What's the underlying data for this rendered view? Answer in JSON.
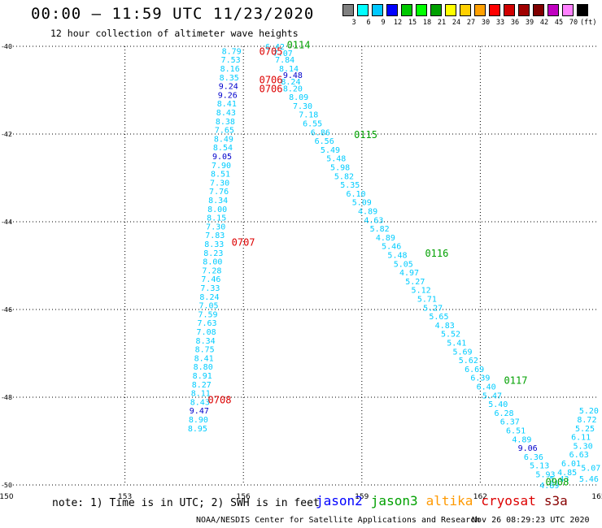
{
  "title": "00:00 – 11:59 UTC 11/23/2020",
  "subtitle": "12 hour collection of altimeter wave heights",
  "colorbar": {
    "colors": [
      "#808080",
      "#00ffff",
      "#00c8ff",
      "#0000ff",
      "#00c800",
      "#00ff00",
      "#00a000",
      "#ffff00",
      "#ffd000",
      "#ffa000",
      "#ff0000",
      "#d00000",
      "#a00000",
      "#800000",
      "#c000c0",
      "#ff80ff",
      "#000000"
    ],
    "ticks": [
      "3",
      "6",
      "9",
      "12",
      "15",
      "18",
      "21",
      "24",
      "27",
      "30",
      "33",
      "36",
      "39",
      "42",
      "45",
      "70",
      "(ft)"
    ]
  },
  "note": "note: 1) Time is in UTC; 2) SWH is in feet",
  "legend": [
    {
      "label": "jason2",
      "color": "#0000ff"
    },
    {
      "label": "jason3",
      "color": "#00a000"
    },
    {
      "label": "altika",
      "color": "#ff9900"
    },
    {
      "label": "cryosat",
      "color": "#dd0000"
    },
    {
      "label": "s3a",
      "color": "#880000"
    }
  ],
  "credit": "NOAA/NESDIS Center for Satellite Applications and Research",
  "timestamp": "Nov 26 08:29:23 UTC 2020",
  "chart_data": {
    "type": "scatter",
    "xlim": [
      150,
      165
    ],
    "ylim": [
      -50,
      -40
    ],
    "x_ticks": [
      "150",
      "153",
      "156",
      "159",
      "162",
      "165"
    ],
    "y_ticks": [
      "-40",
      "-42",
      "-44",
      "-46",
      "-48",
      "-50"
    ],
    "grid": true,
    "units": "ft",
    "time_labels": [
      {
        "text": "0705",
        "x": 156.4,
        "y": -40.1,
        "color": "#dd0000"
      },
      {
        "text": "0706",
        "x": 156.4,
        "y": -40.75,
        "color": "#dd0000"
      },
      {
        "text": "0706",
        "x": 156.4,
        "y": -40.95,
        "color": "#dd0000"
      },
      {
        "text": "0707",
        "x": 155.7,
        "y": -44.45,
        "color": "#dd0000"
      },
      {
        "text": "0708",
        "x": 155.1,
        "y": -48.05,
        "color": "#dd0000"
      },
      {
        "text": "0114",
        "x": 157.1,
        "y": -39.95,
        "color": "#00a000"
      },
      {
        "text": "0115",
        "x": 158.8,
        "y": -42.0,
        "color": "#00a000"
      },
      {
        "text": "0116",
        "x": 160.6,
        "y": -44.7,
        "color": "#00a000"
      },
      {
        "text": "0117",
        "x": 162.6,
        "y": -47.6,
        "color": "#00a000"
      },
      {
        "text": "0908",
        "x": 163.65,
        "y": -49.92,
        "color": "#00a000"
      }
    ],
    "series": [
      {
        "name": "cryosat",
        "color": "#00ccff",
        "points": [
          {
            "x": 155.7,
            "y": -40.1,
            "v": "8.79"
          },
          {
            "x": 155.68,
            "y": -40.3,
            "v": "7.53"
          },
          {
            "x": 155.66,
            "y": -40.5,
            "v": "8.16"
          },
          {
            "x": 155.64,
            "y": -40.7,
            "v": "8.35"
          },
          {
            "x": 155.62,
            "y": -40.9,
            "v": "9.24",
            "c": "#0000cc"
          },
          {
            "x": 155.6,
            "y": -41.1,
            "v": "9.26",
            "c": "#0000cc"
          },
          {
            "x": 155.58,
            "y": -41.3,
            "v": "8.41"
          },
          {
            "x": 155.56,
            "y": -41.5,
            "v": "8.43"
          },
          {
            "x": 155.54,
            "y": -41.7,
            "v": "8.38"
          },
          {
            "x": 155.52,
            "y": -41.9,
            "v": "7.65"
          },
          {
            "x": 155.5,
            "y": -42.1,
            "v": "8.49"
          },
          {
            "x": 155.48,
            "y": -42.3,
            "v": "8.54"
          },
          {
            "x": 155.46,
            "y": -42.5,
            "v": "9.05",
            "c": "#0000cc"
          },
          {
            "x": 155.44,
            "y": -42.7,
            "v": "7.90"
          },
          {
            "x": 155.42,
            "y": -42.9,
            "v": "8.51"
          },
          {
            "x": 155.4,
            "y": -43.1,
            "v": "7.30"
          },
          {
            "x": 155.38,
            "y": -43.3,
            "v": "7.76"
          },
          {
            "x": 155.36,
            "y": -43.5,
            "v": "8.34"
          },
          {
            "x": 155.34,
            "y": -43.7,
            "v": "8.00"
          },
          {
            "x": 155.32,
            "y": -43.9,
            "v": "8.15"
          },
          {
            "x": 155.3,
            "y": -44.1,
            "v": "7.30"
          },
          {
            "x": 155.28,
            "y": -44.3,
            "v": "7.83"
          },
          {
            "x": 155.26,
            "y": -44.5,
            "v": "8.33"
          },
          {
            "x": 155.24,
            "y": -44.7,
            "v": "8.23"
          },
          {
            "x": 155.22,
            "y": -44.9,
            "v": "8.00"
          },
          {
            "x": 155.2,
            "y": -45.1,
            "v": "7.28"
          },
          {
            "x": 155.18,
            "y": -45.3,
            "v": "7.46"
          },
          {
            "x": 155.16,
            "y": -45.5,
            "v": "7.33"
          },
          {
            "x": 155.14,
            "y": -45.7,
            "v": "8.24"
          },
          {
            "x": 155.12,
            "y": -45.9,
            "v": "7.05"
          },
          {
            "x": 155.1,
            "y": -46.1,
            "v": "7.59"
          },
          {
            "x": 155.08,
            "y": -46.3,
            "v": "7.63"
          },
          {
            "x": 155.06,
            "y": -46.5,
            "v": "7.08"
          },
          {
            "x": 155.04,
            "y": -46.7,
            "v": "8.34"
          },
          {
            "x": 155.02,
            "y": -46.9,
            "v": "8.75"
          },
          {
            "x": 155.0,
            "y": -47.1,
            "v": "8.41"
          },
          {
            "x": 154.98,
            "y": -47.3,
            "v": "8.80"
          },
          {
            "x": 154.96,
            "y": -47.5,
            "v": "8.91"
          },
          {
            "x": 154.94,
            "y": -47.7,
            "v": "8.27"
          },
          {
            "x": 154.92,
            "y": -47.9,
            "v": "8.11"
          },
          {
            "x": 154.9,
            "y": -48.1,
            "v": "8.43"
          },
          {
            "x": 154.88,
            "y": -48.3,
            "v": "9.47",
            "c": "#0000cc"
          },
          {
            "x": 154.86,
            "y": -48.5,
            "v": "8.90"
          },
          {
            "x": 154.84,
            "y": -48.7,
            "v": "8.95"
          }
        ]
      },
      {
        "name": "jason3",
        "color": "#00ccff",
        "points": [
          {
            "x": 156.8,
            "y": -40.0,
            "v": "6.42"
          },
          {
            "x": 157.0,
            "y": -40.15,
            "v": "7.07"
          },
          {
            "x": 157.05,
            "y": -40.3,
            "v": "7.84"
          },
          {
            "x": 157.15,
            "y": -40.5,
            "v": "8.14"
          },
          {
            "x": 157.25,
            "y": -40.65,
            "v": "9.48",
            "c": "#0000cc"
          },
          {
            "x": 157.2,
            "y": -40.8,
            "v": "8.24"
          },
          {
            "x": 157.25,
            "y": -40.95,
            "v": "8.20"
          },
          {
            "x": 157.4,
            "y": -41.15,
            "v": "8.09"
          },
          {
            "x": 157.5,
            "y": -41.35,
            "v": "7.30"
          },
          {
            "x": 157.65,
            "y": -41.55,
            "v": "7.18"
          },
          {
            "x": 157.75,
            "y": -41.75,
            "v": "6.55"
          },
          {
            "x": 157.95,
            "y": -41.95,
            "v": "6.86"
          },
          {
            "x": 158.05,
            "y": -42.15,
            "v": "6.56"
          },
          {
            "x": 158.2,
            "y": -42.35,
            "v": "5.49"
          },
          {
            "x": 158.35,
            "y": -42.55,
            "v": "5.48"
          },
          {
            "x": 158.45,
            "y": -42.75,
            "v": "5.98"
          },
          {
            "x": 158.55,
            "y": -42.95,
            "v": "5.82"
          },
          {
            "x": 158.7,
            "y": -43.15,
            "v": "5.35"
          },
          {
            "x": 158.85,
            "y": -43.35,
            "v": "6.10"
          },
          {
            "x": 159.0,
            "y": -43.55,
            "v": "5.09"
          },
          {
            "x": 159.15,
            "y": -43.75,
            "v": "4.89"
          },
          {
            "x": 159.3,
            "y": -43.95,
            "v": "4.63"
          },
          {
            "x": 159.45,
            "y": -44.15,
            "v": "5.82"
          },
          {
            "x": 159.6,
            "y": -44.35,
            "v": "4.89"
          },
          {
            "x": 159.75,
            "y": -44.55,
            "v": "5.46"
          },
          {
            "x": 159.9,
            "y": -44.75,
            "v": "5.48"
          },
          {
            "x": 160.05,
            "y": -44.95,
            "v": "5.05"
          },
          {
            "x": 160.2,
            "y": -45.15,
            "v": "4.97"
          },
          {
            "x": 160.35,
            "y": -45.35,
            "v": "5.27"
          },
          {
            "x": 160.5,
            "y": -45.55,
            "v": "5.12"
          },
          {
            "x": 160.65,
            "y": -45.75,
            "v": "5.71"
          },
          {
            "x": 160.8,
            "y": -45.95,
            "v": "5.27"
          },
          {
            "x": 160.95,
            "y": -46.15,
            "v": "5.65"
          },
          {
            "x": 161.1,
            "y": -46.35,
            "v": "4.83"
          },
          {
            "x": 161.25,
            "y": -46.55,
            "v": "5.52"
          },
          {
            "x": 161.4,
            "y": -46.75,
            "v": "5.41"
          },
          {
            "x": 161.55,
            "y": -46.95,
            "v": "5.69"
          },
          {
            "x": 161.7,
            "y": -47.15,
            "v": "5.62"
          },
          {
            "x": 161.85,
            "y": -47.35,
            "v": "6.69"
          },
          {
            "x": 162.0,
            "y": -47.55,
            "v": "6.39"
          },
          {
            "x": 162.15,
            "y": -47.75,
            "v": "6.40"
          },
          {
            "x": 162.3,
            "y": -47.95,
            "v": "5.47"
          },
          {
            "x": 162.45,
            "y": -48.15,
            "v": "5.40"
          },
          {
            "x": 162.6,
            "y": -48.35,
            "v": "6.28"
          },
          {
            "x": 162.75,
            "y": -48.55,
            "v": "6.37"
          },
          {
            "x": 162.9,
            "y": -48.75,
            "v": "6.51"
          },
          {
            "x": 163.05,
            "y": -48.95,
            "v": "4.89"
          },
          {
            "x": 163.2,
            "y": -49.15,
            "v": "9.06",
            "c": "#0000cc"
          },
          {
            "x": 163.35,
            "y": -49.35,
            "v": "6.36"
          },
          {
            "x": 163.5,
            "y": -49.55,
            "v": "5.13"
          },
          {
            "x": 163.65,
            "y": -49.75,
            "v": "5.93"
          }
        ]
      },
      {
        "name": "altika",
        "color": "#00ccff",
        "points": [
          {
            "x": 164.75,
            "y": -48.3,
            "v": "5.20"
          },
          {
            "x": 164.7,
            "y": -48.5,
            "v": "8.72"
          },
          {
            "x": 164.65,
            "y": -48.7,
            "v": "5.25"
          },
          {
            "x": 164.55,
            "y": -48.9,
            "v": "6.11"
          },
          {
            "x": 164.6,
            "y": -49.1,
            "v": "5.30"
          },
          {
            "x": 164.5,
            "y": -49.3,
            "v": "6.63"
          },
          {
            "x": 164.3,
            "y": -49.5,
            "v": "6.01"
          },
          {
            "x": 164.8,
            "y": -49.6,
            "v": "5.07"
          },
          {
            "x": 164.2,
            "y": -49.7,
            "v": "4.85"
          },
          {
            "x": 164.0,
            "y": -49.85,
            "v": "5.43"
          },
          {
            "x": 163.75,
            "y": -50.0,
            "v": "4.89"
          },
          {
            "x": 164.75,
            "y": -49.85,
            "v": "5.46"
          }
        ]
      }
    ]
  }
}
